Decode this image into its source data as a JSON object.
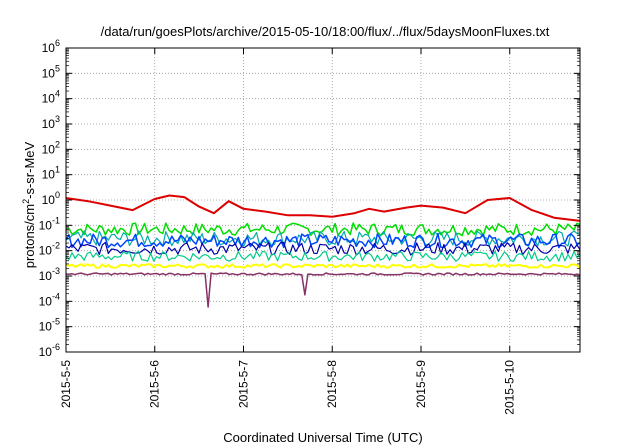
{
  "chart_data": {
    "type": "line",
    "title": "/data/run/goesPlots/archive/2015-05-10/18:00/flux/../flux/5daysMoonFluxes.txt",
    "xlabel": "Coordinated Universal Time (UTC)",
    "ylabel": "protons/cm2-s-sr-MeV",
    "ylabel_parts": {
      "before": "protons/cm",
      "sup": "2",
      "after": "-s-sr-MeV"
    },
    "y_scale": "log",
    "ylim": [
      1e-06,
      1000000.0
    ],
    "y_ticks": [
      {
        "base": "10",
        "exp": "-6"
      },
      {
        "base": "10",
        "exp": "-5"
      },
      {
        "base": "10",
        "exp": "-4"
      },
      {
        "base": "10",
        "exp": "-3"
      },
      {
        "base": "10",
        "exp": "-2"
      },
      {
        "base": "10",
        "exp": "-1"
      },
      {
        "base": "10",
        "exp": "0"
      },
      {
        "base": "10",
        "exp": "1"
      },
      {
        "base": "10",
        "exp": "2"
      },
      {
        "base": "10",
        "exp": "3"
      },
      {
        "base": "10",
        "exp": "4"
      },
      {
        "base": "10",
        "exp": "5"
      },
      {
        "base": "10",
        "exp": "6"
      }
    ],
    "x_ticks": [
      "2015-5-5",
      "2015-5-6",
      "2015-5-7",
      "2015-5-8",
      "2015-5-9",
      "2015-5-10"
    ],
    "xlim": [
      "2015-05-05 00:00",
      "2015-05-10 19:00"
    ],
    "grid": true,
    "legend": "none",
    "series": [
      {
        "color": "#dd0000",
        "width": 2,
        "points": [
          [
            "2015-05-05 00:00",
            1.2
          ],
          [
            "2015-05-05 06:00",
            0.9
          ],
          [
            "2015-05-05 12:00",
            0.6
          ],
          [
            "2015-05-05 18:00",
            0.4
          ],
          [
            "2015-05-06 00:00",
            1.1
          ],
          [
            "2015-05-06 04:00",
            1.5
          ],
          [
            "2015-05-06 08:00",
            1.3
          ],
          [
            "2015-05-06 12:00",
            0.55
          ],
          [
            "2015-05-06 16:00",
            0.3
          ],
          [
            "2015-05-06 20:00",
            0.9
          ],
          [
            "2015-05-07 00:00",
            0.45
          ],
          [
            "2015-05-07 06:00",
            0.35
          ],
          [
            "2015-05-07 12:00",
            0.25
          ],
          [
            "2015-05-07 18:00",
            0.25
          ],
          [
            "2015-05-08 00:00",
            0.22
          ],
          [
            "2015-05-08 06:00",
            0.3
          ],
          [
            "2015-05-08 10:00",
            0.45
          ],
          [
            "2015-05-08 14:00",
            0.35
          ],
          [
            "2015-05-08 20:00",
            0.5
          ],
          [
            "2015-05-09 00:00",
            0.6
          ],
          [
            "2015-05-09 06:00",
            0.5
          ],
          [
            "2015-05-09 12:00",
            0.3
          ],
          [
            "2015-05-09 18:00",
            1.0
          ],
          [
            "2015-05-10 00:00",
            1.2
          ],
          [
            "2015-05-10 06:00",
            0.4
          ],
          [
            "2015-05-10 12:00",
            0.2
          ],
          [
            "2015-05-10 19:00",
            0.15
          ]
        ]
      },
      {
        "color": "#00dd00",
        "width": 1.5,
        "base": 0.07,
        "spread": 0.5
      },
      {
        "color": "#00aaaa",
        "width": 1.2,
        "base": 0.03,
        "spread": 0.6
      },
      {
        "color": "#0044ff",
        "width": 1.5,
        "base": 0.025,
        "spread": 0.55
      },
      {
        "color": "#0000aa",
        "width": 1.2,
        "base": 0.012,
        "spread": 0.5
      },
      {
        "color": "#00cc88",
        "width": 1.2,
        "base": 0.006,
        "spread": 0.4
      },
      {
        "color": "#ffff00",
        "width": 2,
        "base": 0.0025,
        "spread": 0.15
      },
      {
        "color": "#883366",
        "width": 1.5,
        "base": 0.0012,
        "spread": 0.08
      }
    ]
  }
}
